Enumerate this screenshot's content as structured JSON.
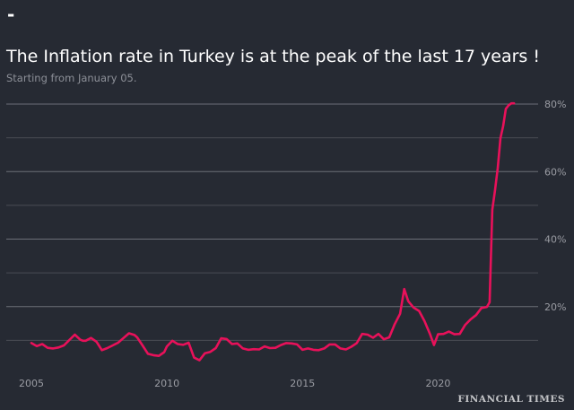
{
  "header": {
    "mark": "-",
    "title": "The Inflation rate in Turkey is at the peak of the last 17 years !",
    "subtitle": "Starting from January 05."
  },
  "source": "FINANCIAL TIMES",
  "colors": {
    "background": "#262a33",
    "line": "#e8115a",
    "gridline": "#6c6f78",
    "minor_gridline": "#4a4d55",
    "tick_label": "#9a9ca3"
  },
  "chart_data": {
    "type": "line",
    "title": "The Inflation rate in Turkey is at the peak of the last 17 years !",
    "subtitle": "Starting from January 05.",
    "xlabel": "",
    "ylabel": "",
    "xlim": [
      2005,
      2022.83
    ],
    "ylim": [
      0,
      80
    ],
    "x_ticks": [
      2005,
      2010,
      2015,
      2020
    ],
    "x_tick_labels": [
      "2005",
      "2010",
      "2015",
      "2020"
    ],
    "y_ticks": [
      20,
      40,
      60,
      80
    ],
    "y_tick_labels": [
      "20%",
      "40%",
      "60%",
      "80%"
    ],
    "grid": true,
    "legend": "none",
    "series": [
      {
        "x": [
          2005.0,
          2005.2,
          2005.4,
          2005.6,
          2005.8,
          2006.0,
          2006.2,
          2006.4,
          2006.6,
          2006.8,
          2006.9,
          2007.0,
          2007.2,
          2007.4,
          2007.6,
          2007.8,
          2008.0,
          2008.2,
          2008.4,
          2008.6,
          2008.8,
          2008.9,
          2009.1,
          2009.3,
          2009.5,
          2009.7,
          2009.9,
          2010.0,
          2010.2,
          2010.4,
          2010.6,
          2010.8,
          2011.0,
          2011.2,
          2011.4,
          2011.6,
          2011.8,
          2012.0,
          2012.2,
          2012.4,
          2012.6,
          2012.8,
          2013.0,
          2013.2,
          2013.4,
          2013.6,
          2013.8,
          2014.0,
          2014.2,
          2014.4,
          2014.6,
          2014.8,
          2015.0,
          2015.2,
          2015.4,
          2015.6,
          2015.8,
          2016.0,
          2016.2,
          2016.4,
          2016.6,
          2016.8,
          2017.0,
          2017.2,
          2017.4,
          2017.6,
          2017.8,
          2018.0,
          2018.2,
          2018.4,
          2018.6,
          2018.75,
          2018.9,
          2019.1,
          2019.3,
          2019.5,
          2019.7,
          2019.85,
          2020.0,
          2020.2,
          2020.4,
          2020.6,
          2020.8,
          2021.0,
          2021.2,
          2021.4,
          2021.6,
          2021.8,
          2021.9,
          2022.0,
          2022.1,
          2022.2,
          2022.3,
          2022.4,
          2022.5,
          2022.6,
          2022.7,
          2022.8
        ],
        "values": [
          9.2,
          8.3,
          8.9,
          7.8,
          7.6,
          7.9,
          8.5,
          10.1,
          11.7,
          10.2,
          9.9,
          9.9,
          10.7,
          9.6,
          7.1,
          7.7,
          8.5,
          9.3,
          10.7,
          12.1,
          11.6,
          10.9,
          8.5,
          6.0,
          5.6,
          5.4,
          6.5,
          8.2,
          9.9,
          8.9,
          8.7,
          9.3,
          4.9,
          4.1,
          6.2,
          6.6,
          7.7,
          10.6,
          10.4,
          8.9,
          9.1,
          7.6,
          7.2,
          7.4,
          7.3,
          8.2,
          7.7,
          7.8,
          8.6,
          9.2,
          9.1,
          8.8,
          7.2,
          7.6,
          7.2,
          7.1,
          7.6,
          8.8,
          8.8,
          7.6,
          7.3,
          8.1,
          9.2,
          11.9,
          11.7,
          10.8,
          11.9,
          10.3,
          10.9,
          14.8,
          17.9,
          25.2,
          21.6,
          19.7,
          18.7,
          15.7,
          11.9,
          8.6,
          11.8,
          11.9,
          12.6,
          11.8,
          11.9,
          14.6,
          16.2,
          17.5,
          19.6,
          19.9,
          21.3,
          48.7,
          54.4,
          61.1,
          69.9,
          73.5,
          78.6,
          79.6,
          80.2,
          80.2
        ]
      }
    ]
  }
}
